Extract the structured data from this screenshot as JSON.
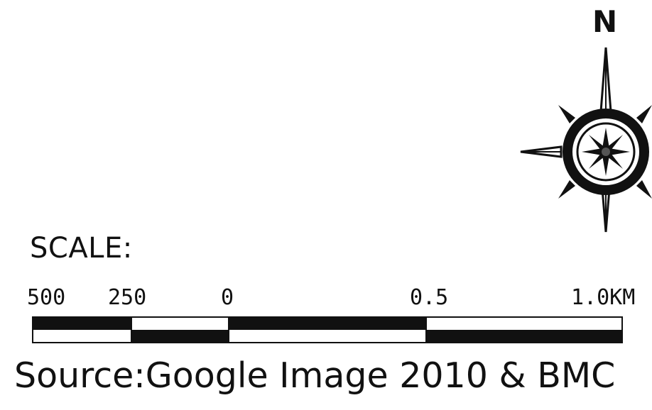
{
  "map": {
    "north_arrow": {
      "label": "N",
      "icon": "compass-rose-icon"
    },
    "scale": {
      "title": "SCALE:",
      "tick_labels": [
        "500",
        "250",
        "0",
        "0.5",
        "1.0KM"
      ],
      "segments_top": [
        "black",
        "white",
        "black",
        "white"
      ],
      "segments_bottom": [
        "white",
        "black",
        "white",
        "black"
      ]
    },
    "source": "Source:Google Image 2010 & BMC"
  }
}
